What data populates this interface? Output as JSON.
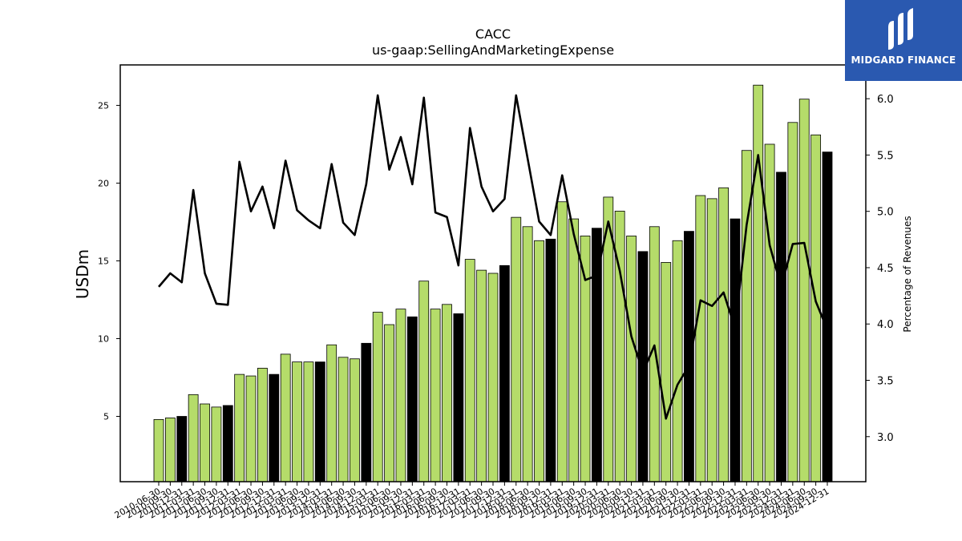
{
  "header": {
    "title": "CACC",
    "subtitle": "us-gaap:SellingAndMarketingExpense"
  },
  "logo": {
    "text": "MIDGARD FINANCE",
    "color": "#2a59b0"
  },
  "chart_data": {
    "type": "bar",
    "ylabel": "USDm",
    "y2label": "Percentage of Revenues",
    "ylim": [
      0.8,
      27.6
    ],
    "y2lim": [
      2.6,
      6.3
    ],
    "yticks": [
      5,
      10,
      15,
      20,
      25
    ],
    "y2ticks": [
      3.0,
      3.5,
      4.0,
      4.5,
      5.0,
      5.5,
      6.0
    ],
    "colors": {
      "quarter": "#b5dc6a",
      "annual": "#000000",
      "line": "#000000"
    },
    "categories": [
      "2010-06-30",
      "2010-09-30",
      "2010-12-31",
      "2011-03-31",
      "2011-06-30",
      "2011-09-30",
      "2011-12-31",
      "2012-03-31",
      "2012-06-30",
      "2012-09-30",
      "2012-12-31",
      "2013-03-31",
      "2013-06-30",
      "2013-09-30",
      "2013-12-31",
      "2014-03-31",
      "2014-06-30",
      "2014-09-30",
      "2014-12-31",
      "2015-03-31",
      "2015-06-30",
      "2015-09-30",
      "2015-12-31",
      "2016-03-31",
      "2016-06-30",
      "2016-09-30",
      "2016-12-31",
      "2017-03-31",
      "2017-06-30",
      "2017-09-30",
      "2017-12-31",
      "2018-03-31",
      "2018-06-30",
      "2018-09-30",
      "2018-12-31",
      "2019-03-31",
      "2019-06-30",
      "2019-09-30",
      "2019-12-31",
      "2020-03-31",
      "2020-06-30",
      "2020-09-30",
      "2020-12-31",
      "2021-03-31",
      "2021-06-30",
      "2021-09-30",
      "2021-12-31",
      "2022-03-31",
      "2022-06-30",
      "2022-09-30",
      "2022-12-31",
      "2023-03-31",
      "2023-06-30",
      "2023-09-30",
      "2023-12-31",
      "2024-03-31",
      "2024-06-30",
      "2024-09-30",
      "2024-12-31"
    ],
    "tick_labels": [
      "2010-06-30",
      "2010-09-30",
      "2010-12-31",
      "2011-03-31",
      "2011-06-30",
      "2011-09-30",
      "2011-12-31",
      "2012-03-31",
      "2012-06-30",
      "2012-09-30",
      "2012-12-31",
      "2013-03-31",
      "2013-06-30",
      "2013-09-30",
      "2013-12-31",
      "2014-03-31",
      "2014-06-30",
      "2014-09-30",
      "2014-12-31",
      "2015-03-31",
      "2015-06-30",
      "2015-09-30",
      "2015-12-31",
      "2016-03-31",
      "2016-06-30",
      "2016-09-30",
      "2016-12-31",
      "2017-03-31",
      "2017-06-30",
      "2017-09-30",
      "2017-12-31",
      "2018-03-31",
      "2018-06-30",
      "2018-09-30",
      "2018-12-31",
      "2019-03-31",
      "2019-06-30",
      "2019-09-30",
      "2019-12-31",
      "2020-03-31",
      "2020-06-30",
      "2020-09-30",
      "2020-12-31",
      "2021-03-31",
      "2021-06-30",
      "2021-09-30",
      "2021-12-31",
      "2022-03-31",
      "2022-06-30",
      "2022-09-30",
      "2022-12-31",
      "2023-03-31",
      "2023-06-30",
      "2023-09-30",
      "2023-12-31",
      "2024-03-31",
      "2024-06-30",
      "2024-09-30",
      "2024-12-31"
    ],
    "values": [
      4.8,
      4.9,
      5.0,
      6.4,
      5.8,
      5.6,
      5.7,
      7.7,
      7.6,
      8.1,
      7.7,
      9.0,
      8.5,
      8.5,
      8.5,
      9.6,
      8.8,
      8.7,
      9.7,
      11.7,
      10.9,
      11.9,
      11.4,
      13.7,
      11.9,
      12.2,
      11.6,
      15.1,
      14.4,
      14.2,
      14.7,
      17.8,
      17.2,
      16.3,
      16.4,
      18.8,
      17.7,
      16.6,
      17.1,
      19.1,
      18.2,
      16.6,
      15.6,
      17.2,
      14.9,
      16.3,
      16.9,
      19.2,
      19.0,
      19.7,
      17.7,
      22.1,
      26.3,
      22.5,
      20.7,
      23.9,
      25.4,
      23.1,
      22.0
    ],
    "annual": [
      false,
      false,
      true,
      false,
      false,
      false,
      true,
      false,
      false,
      false,
      true,
      false,
      false,
      false,
      true,
      false,
      false,
      false,
      true,
      false,
      false,
      false,
      true,
      false,
      false,
      false,
      true,
      false,
      false,
      false,
      true,
      false,
      false,
      false,
      true,
      false,
      false,
      false,
      true,
      false,
      false,
      false,
      true,
      false,
      false,
      false,
      true,
      false,
      false,
      false,
      true,
      false,
      false,
      false,
      true,
      false,
      false,
      false,
      true
    ],
    "pct_revenues": [
      4.33,
      4.45,
      4.37,
      5.19,
      4.45,
      4.18,
      4.17,
      5.44,
      5.0,
      5.22,
      4.85,
      5.45,
      5.01,
      4.92,
      4.85,
      5.42,
      4.9,
      4.79,
      5.24,
      6.03,
      5.37,
      5.66,
      5.24,
      6.01,
      4.99,
      4.95,
      4.52,
      5.74,
      5.22,
      5.0,
      5.11,
      6.03,
      5.47,
      4.91,
      4.79,
      5.32,
      4.8,
      4.39,
      4.43,
      4.91,
      4.47,
      3.89,
      3.57,
      3.81,
      3.16,
      3.46,
      3.63,
      4.21,
      4.16,
      4.28,
      3.96,
      4.88,
      5.5,
      4.7,
      4.33,
      4.71,
      4.72,
      4.2,
      3.95
    ]
  }
}
